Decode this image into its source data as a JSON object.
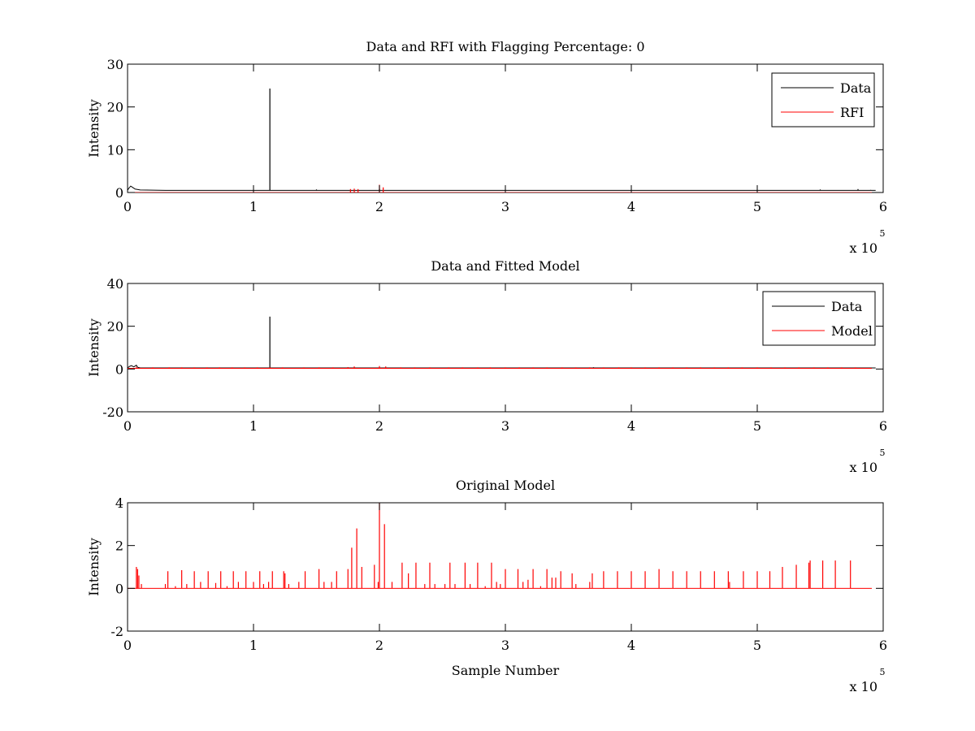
{
  "chart_data": [
    {
      "type": "line",
      "title": "Data and RFI with Flagging Percentage: 0",
      "xlabel": "",
      "ylabel": "Intensity",
      "xlim": [
        0,
        600000
      ],
      "ylim": [
        0,
        30
      ],
      "xticks": [
        0,
        100000,
        200000,
        300000,
        400000,
        500000,
        600000
      ],
      "xtick_labels": [
        "0",
        "1",
        "2",
        "3",
        "4",
        "5",
        "6"
      ],
      "yticks": [
        0,
        10,
        20,
        30
      ],
      "ytick_labels": [
        "0",
        "10",
        "20",
        "30"
      ],
      "x_exponent": {
        "base": "x 10",
        "power": "5"
      },
      "legend": {
        "position": "top-right",
        "entries": [
          "Data",
          "RFI"
        ]
      },
      "series": [
        {
          "name": "Data",
          "color": "#000000",
          "baseline": 0.5,
          "segments": [
            [
              0,
              0.5
            ],
            [
              1000,
              1.0
            ],
            [
              2500,
              1.5
            ],
            [
              4000,
              1.2
            ],
            [
              6000,
              0.8
            ],
            [
              10000,
              0.6
            ],
            [
              30000,
              0.5
            ]
          ],
          "spikes": [
            [
              113000,
              24.3
            ],
            [
              150000,
              0.7
            ],
            [
              200000,
              0.8
            ],
            [
              300000,
              0.6
            ],
            [
              400000,
              0.6
            ],
            [
              500000,
              0.6
            ],
            [
              550000,
              0.7
            ],
            [
              580000,
              0.8
            ],
            [
              590000,
              0.6
            ]
          ]
        },
        {
          "name": "RFI",
          "color": "#ff0000",
          "baseline": 0,
          "spikes": [
            [
              177000,
              0.8
            ],
            [
              180000,
              0.9
            ],
            [
              183000,
              0.8
            ],
            [
              200000,
              1.8
            ],
            [
              203000,
              1.2
            ]
          ]
        }
      ]
    },
    {
      "type": "line",
      "title": "Data and Fitted Model",
      "xlabel": "",
      "ylabel": "Intensity",
      "xlim": [
        0,
        600000
      ],
      "ylim": [
        -20,
        40
      ],
      "xticks": [
        0,
        100000,
        200000,
        300000,
        400000,
        500000,
        600000
      ],
      "xtick_labels": [
        "0",
        "1",
        "2",
        "3",
        "4",
        "5",
        "6"
      ],
      "yticks": [
        -20,
        0,
        20,
        40
      ],
      "ytick_labels": [
        "-20",
        "0",
        "20",
        "40"
      ],
      "x_exponent": {
        "base": "x 10",
        "power": "5"
      },
      "legend": {
        "position": "top-right",
        "entries": [
          "Data",
          "Model"
        ]
      },
      "series": [
        {
          "name": "Data",
          "color": "#000000",
          "baseline": 0.5,
          "segments": [
            [
              0,
              0.5
            ],
            [
              1500,
              1.2
            ],
            [
              3000,
              1.6
            ],
            [
              5000,
              1.0
            ],
            [
              7000,
              1.8
            ],
            [
              8000,
              0.8
            ],
            [
              10000,
              0.5
            ]
          ],
          "spikes": [
            [
              113000,
              24.5
            ],
            [
              370000,
              0.8
            ],
            [
              590000,
              0.7
            ]
          ]
        },
        {
          "name": "Model",
          "color": "#ff0000",
          "baseline": 0.3,
          "spikes": [
            [
              7000,
              1.0
            ],
            [
              20000,
              0.8
            ],
            [
              33000,
              0.8
            ],
            [
              43000,
              0.8
            ],
            [
              53000,
              0.8
            ],
            [
              63000,
              0.8
            ],
            [
              73000,
              0.8
            ],
            [
              83000,
              0.8
            ],
            [
              93000,
              0.8
            ],
            [
              103000,
              0.8
            ],
            [
              113000,
              0.8
            ],
            [
              123000,
              0.8
            ],
            [
              140000,
              0.8
            ],
            [
              152000,
              0.8
            ],
            [
              163000,
              0.8
            ],
            [
              175000,
              0.9
            ],
            [
              180000,
              1.2
            ],
            [
              200000,
              1.4
            ],
            [
              205000,
              1.2
            ],
            [
              217000,
              0.8
            ],
            [
              228000,
              0.8
            ],
            [
              240000,
              0.8
            ],
            [
              255000,
              0.8
            ],
            [
              266000,
              0.8
            ],
            [
              278000,
              0.8
            ],
            [
              288000,
              0.8
            ],
            [
              300000,
              0.8
            ],
            [
              311000,
              0.8
            ],
            [
              322000,
              0.8
            ],
            [
              333000,
              0.8
            ],
            [
              345000,
              0.8
            ],
            [
              356000,
              0.8
            ],
            [
              367000,
              0.8
            ],
            [
              378000,
              0.8
            ],
            [
              390000,
              0.8
            ],
            [
              400000,
              0.8
            ],
            [
              411000,
              0.8
            ],
            [
              422000,
              0.8
            ],
            [
              433000,
              0.8
            ],
            [
              444000,
              0.8
            ],
            [
              455000,
              0.8
            ],
            [
              466000,
              0.8
            ],
            [
              477000,
              0.8
            ],
            [
              488000,
              0.8
            ],
            [
              500000,
              0.8
            ],
            [
              511000,
              0.8
            ],
            [
              522000,
              0.8
            ],
            [
              533000,
              0.8
            ],
            [
              545000,
              0.8
            ],
            [
              556000,
              0.8
            ],
            [
              567000,
              0.8
            ],
            [
              578000,
              0.8
            ]
          ]
        }
      ]
    },
    {
      "type": "line",
      "title": "Original Model",
      "xlabel": "Sample Number",
      "ylabel": "Intensity",
      "xlim": [
        0,
        600000
      ],
      "ylim": [
        -2,
        4
      ],
      "xticks": [
        0,
        100000,
        200000,
        300000,
        400000,
        500000,
        600000
      ],
      "xtick_labels": [
        "0",
        "1",
        "2",
        "3",
        "4",
        "5",
        "6"
      ],
      "yticks": [
        -2,
        0,
        2,
        4
      ],
      "ytick_labels": [
        "-2",
        "0",
        "2",
        "4"
      ],
      "x_exponent": {
        "base": "x 10",
        "power": "5"
      },
      "legend": null,
      "series": [
        {
          "color": "#ff0000",
          "baseline": 0,
          "spikes": [
            [
              7000,
              1.0
            ],
            [
              8000,
              0.9
            ],
            [
              9000,
              0.6
            ],
            [
              11000,
              0.2
            ],
            [
              30000,
              0.2
            ],
            [
              32000,
              0.8
            ],
            [
              38000,
              0.1
            ],
            [
              43000,
              0.85
            ],
            [
              47000,
              0.2
            ],
            [
              53000,
              0.8
            ],
            [
              58000,
              0.3
            ],
            [
              64000,
              0.8
            ],
            [
              70000,
              0.25
            ],
            [
              74000,
              0.8
            ],
            [
              79000,
              0.1
            ],
            [
              84000,
              0.8
            ],
            [
              88000,
              0.3
            ],
            [
              94000,
              0.8
            ],
            [
              100000,
              0.3
            ],
            [
              105000,
              0.8
            ],
            [
              108000,
              0.2
            ],
            [
              112000,
              0.3
            ],
            [
              115000,
              0.8
            ],
            [
              124000,
              0.8
            ],
            [
              125000,
              0.7
            ],
            [
              128000,
              0.2
            ],
            [
              136000,
              0.3
            ],
            [
              141000,
              0.8
            ],
            [
              152000,
              0.9
            ],
            [
              156000,
              0.3
            ],
            [
              162000,
              0.3
            ],
            [
              166000,
              0.8
            ],
            [
              175000,
              0.9
            ],
            [
              178000,
              1.9
            ],
            [
              182000,
              2.8
            ],
            [
              186000,
              1.0
            ],
            [
              196000,
              1.1
            ],
            [
              199000,
              0.3
            ],
            [
              200000,
              4.0
            ],
            [
              204000,
              3.0
            ],
            [
              210000,
              0.3
            ],
            [
              218000,
              1.2
            ],
            [
              223000,
              0.7
            ],
            [
              229000,
              1.2
            ],
            [
              236000,
              0.2
            ],
            [
              240000,
              1.2
            ],
            [
              244000,
              0.2
            ],
            [
              252000,
              0.2
            ],
            [
              256000,
              1.2
            ],
            [
              260000,
              0.2
            ],
            [
              268000,
              1.2
            ],
            [
              272000,
              0.2
            ],
            [
              278000,
              1.2
            ],
            [
              284000,
              0.1
            ],
            [
              289000,
              1.2
            ],
            [
              293000,
              0.3
            ],
            [
              296000,
              0.2
            ],
            [
              300000,
              0.9
            ],
            [
              310000,
              0.9
            ],
            [
              314000,
              0.3
            ],
            [
              318000,
              0.4
            ],
            [
              322000,
              0.9
            ],
            [
              328000,
              0.1
            ],
            [
              333000,
              0.9
            ],
            [
              337000,
              0.5
            ],
            [
              340000,
              0.5
            ],
            [
              344000,
              0.8
            ],
            [
              353000,
              0.7
            ],
            [
              356000,
              0.2
            ],
            [
              367000,
              0.3
            ],
            [
              369000,
              0.7
            ],
            [
              378000,
              0.8
            ],
            [
              389000,
              0.8
            ],
            [
              400000,
              0.8
            ],
            [
              411000,
              0.8
            ],
            [
              422000,
              0.9
            ],
            [
              433000,
              0.8
            ],
            [
              444000,
              0.8
            ],
            [
              455000,
              0.8
            ],
            [
              466000,
              0.8
            ],
            [
              477000,
              0.8
            ],
            [
              478000,
              0.3
            ],
            [
              489000,
              0.8
            ],
            [
              500000,
              0.8
            ],
            [
              510000,
              0.8
            ],
            [
              520000,
              1.0
            ],
            [
              531000,
              1.1
            ],
            [
              541000,
              1.2
            ],
            [
              542000,
              1.3
            ],
            [
              552000,
              1.3
            ],
            [
              562000,
              1.3
            ],
            [
              574000,
              1.3
            ]
          ]
        }
      ]
    }
  ]
}
